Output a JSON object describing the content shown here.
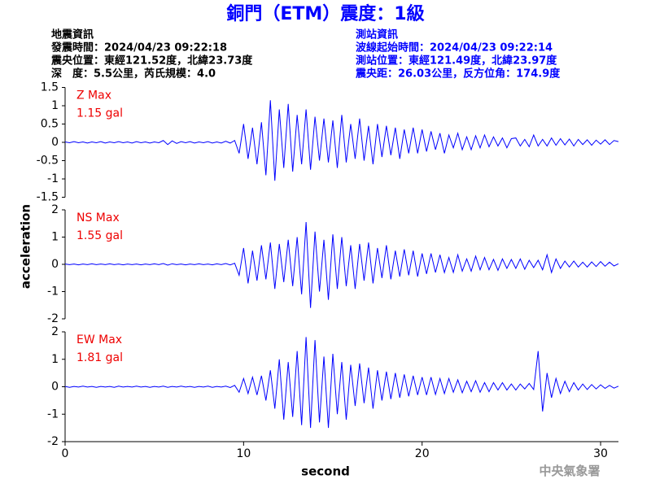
{
  "title": "銅門（ETM）震度：1級",
  "header": {
    "left": [
      "地震資訊",
      "發震時間：2024/04/23 09:22:18",
      "震央位置：東經121.52度，北緯23.73度",
      "深　度：5.5公里，芮氏規模：4.0"
    ],
    "right": [
      "測站資訊",
      "波線起始時間：2024/04/23 09:22:14",
      "測站位置：東經121.49度，北緯23.97度",
      "震央距：26.03公里，反方位角：174.9度"
    ]
  },
  "watermark": "中央氣象署",
  "chart_data": [
    {
      "type": "line",
      "annotations": [
        "Z Max",
        "1.15 gal"
      ],
      "color": "#0000ff",
      "xlim": [
        0,
        31
      ],
      "ylim": [
        -1.5,
        1.5
      ],
      "yticks": [
        1.5,
        1,
        0.5,
        0,
        -0.5,
        -1,
        -1.5
      ],
      "x": [
        0,
        0.25,
        0.5,
        0.75,
        1,
        1.25,
        1.5,
        1.75,
        2,
        2.25,
        2.5,
        2.75,
        3,
        3.25,
        3.5,
        3.75,
        4,
        4.25,
        4.5,
        4.75,
        5,
        5.25,
        5.5,
        5.75,
        6,
        6.25,
        6.5,
        6.75,
        7,
        7.25,
        7.5,
        7.75,
        8,
        8.25,
        8.5,
        8.75,
        9,
        9.25,
        9.5,
        9.75,
        10,
        10.25,
        10.5,
        10.75,
        11,
        11.25,
        11.5,
        11.75,
        12,
        12.25,
        12.5,
        12.75,
        13,
        13.25,
        13.5,
        13.75,
        14,
        14.25,
        14.5,
        14.75,
        15,
        15.25,
        15.5,
        15.75,
        16,
        16.25,
        16.5,
        16.75,
        17,
        17.25,
        17.5,
        17.75,
        18,
        18.25,
        18.5,
        18.75,
        19,
        19.25,
        19.5,
        19.75,
        20,
        20.25,
        20.5,
        20.75,
        21,
        21.25,
        21.5,
        21.75,
        22,
        22.25,
        22.5,
        22.75,
        23,
        23.25,
        23.5,
        23.75,
        24,
        24.25,
        24.5,
        24.75,
        25,
        25.25,
        25.5,
        25.75,
        26,
        26.25,
        26.5,
        26.75,
        27,
        27.25,
        27.5,
        27.75,
        28,
        28.25,
        28.5,
        28.75,
        29,
        29.25,
        29.5,
        29.75,
        30,
        30.25,
        30.5,
        30.75,
        31
      ],
      "values": [
        0.01,
        -0.01,
        0.02,
        -0.01,
        0.01,
        -0.02,
        0.01,
        -0.01,
        0.02,
        -0.02,
        0.01,
        -0.01,
        0.02,
        -0.01,
        0.01,
        -0.02,
        0.02,
        -0.01,
        0.01,
        -0.02,
        0.01,
        -0.01,
        0.05,
        -0.06,
        0.04,
        -0.03,
        0.02,
        -0.01,
        0.02,
        -0.02,
        0.01,
        -0.01,
        0.02,
        -0.02,
        0.01,
        -0.02,
        0.03,
        -0.02,
        0.05,
        -0.3,
        0.5,
        -0.45,
        0.4,
        -0.6,
        0.55,
        -0.9,
        1.15,
        -1.05,
        0.9,
        -0.7,
        1.05,
        -0.8,
        0.75,
        -0.6,
        0.9,
        -0.75,
        0.7,
        -0.5,
        0.65,
        -0.55,
        0.6,
        -0.7,
        0.75,
        -0.55,
        0.5,
        -0.45,
        0.65,
        -0.5,
        0.45,
        -0.6,
        0.5,
        -0.4,
        0.45,
        -0.35,
        0.4,
        -0.45,
        0.35,
        -0.3,
        0.4,
        -0.3,
        0.35,
        -0.25,
        0.3,
        -0.2,
        0.25,
        -0.3,
        0.2,
        -0.15,
        0.25,
        -0.2,
        0.15,
        -0.2,
        0.18,
        -0.15,
        0.2,
        -0.12,
        0.15,
        -0.1,
        0.12,
        -0.15,
        0.1,
        0.12,
        -0.1,
        0.08,
        -0.12,
        0.2,
        -0.1,
        0.08,
        -0.1,
        0.12,
        -0.08,
        0.1,
        -0.07,
        0.09,
        -0.1,
        0.08,
        -0.06,
        0.07,
        -0.08,
        0.06,
        -0.05,
        0.07,
        -0.06,
        0.05,
        0.02
      ]
    },
    {
      "type": "line",
      "annotations": [
        "NS Max",
        "1.55 gal"
      ],
      "color": "#0000ff",
      "ylabel": "acceleration",
      "xlim": [
        0,
        31
      ],
      "ylim": [
        -2,
        2
      ],
      "yticks": [
        2,
        1,
        0,
        -1,
        -2
      ],
      "x": [
        0,
        0.25,
        0.5,
        0.75,
        1,
        1.25,
        1.5,
        1.75,
        2,
        2.25,
        2.5,
        2.75,
        3,
        3.25,
        3.5,
        3.75,
        4,
        4.25,
        4.5,
        4.75,
        5,
        5.25,
        5.5,
        5.75,
        6,
        6.25,
        6.5,
        6.75,
        7,
        7.25,
        7.5,
        7.75,
        8,
        8.25,
        8.5,
        8.75,
        9,
        9.25,
        9.5,
        9.75,
        10,
        10.25,
        10.5,
        10.75,
        11,
        11.25,
        11.5,
        11.75,
        12,
        12.25,
        12.5,
        12.75,
        13,
        13.25,
        13.5,
        13.75,
        14,
        14.25,
        14.5,
        14.75,
        15,
        15.25,
        15.5,
        15.75,
        16,
        16.25,
        16.5,
        16.75,
        17,
        17.25,
        17.5,
        17.75,
        18,
        18.25,
        18.5,
        18.75,
        19,
        19.25,
        19.5,
        19.75,
        20,
        20.25,
        20.5,
        20.75,
        21,
        21.25,
        21.5,
        21.75,
        22,
        22.25,
        22.5,
        22.75,
        23,
        23.25,
        23.5,
        23.75,
        24,
        24.25,
        24.5,
        24.75,
        25,
        25.25,
        25.5,
        25.75,
        26,
        26.25,
        26.5,
        26.75,
        27,
        27.25,
        27.5,
        27.75,
        28,
        28.25,
        28.5,
        28.75,
        29,
        29.25,
        29.5,
        29.75,
        30,
        30.25,
        30.5,
        30.75,
        31
      ],
      "values": [
        0.01,
        -0.01,
        0.01,
        -0.02,
        0.01,
        -0.01,
        0.02,
        -0.01,
        0.01,
        -0.01,
        0.02,
        -0.01,
        0.01,
        -0.02,
        0.01,
        -0.01,
        0.01,
        -0.02,
        0.01,
        -0.01,
        0.02,
        -0.01,
        0.03,
        -0.03,
        0.02,
        -0.01,
        0.01,
        -0.02,
        0.01,
        -0.01,
        0.02,
        -0.01,
        0.01,
        -0.02,
        0.02,
        -0.01,
        0.03,
        -0.02,
        0.04,
        -0.4,
        0.6,
        -0.7,
        0.5,
        -0.6,
        0.7,
        -0.55,
        0.8,
        -0.9,
        0.75,
        -0.65,
        0.9,
        -0.8,
        1.0,
        -1.1,
        1.55,
        -1.6,
        1.2,
        -1.0,
        0.9,
        -1.3,
        1.1,
        -0.9,
        1.0,
        -0.8,
        0.7,
        -0.9,
        0.75,
        -0.6,
        0.8,
        -0.7,
        0.6,
        -0.5,
        0.7,
        -0.55,
        0.5,
        -0.45,
        0.55,
        -0.4,
        0.5,
        -0.45,
        0.4,
        -0.35,
        0.4,
        -0.3,
        0.35,
        -0.3,
        0.25,
        -0.3,
        0.35,
        -0.25,
        0.2,
        -0.25,
        0.3,
        -0.2,
        0.25,
        -0.2,
        0.18,
        -0.22,
        0.2,
        -0.15,
        0.18,
        -0.15,
        0.2,
        -0.18,
        0.15,
        -0.12,
        0.15,
        -0.2,
        0.35,
        -0.3,
        0.2,
        -0.15,
        0.12,
        -0.1,
        0.12,
        -0.1,
        0.08,
        -0.1,
        0.09,
        -0.08,
        0.1,
        -0.07,
        0.08,
        -0.06,
        0.02
      ]
    },
    {
      "type": "line",
      "annotations": [
        "EW Max",
        "1.81 gal"
      ],
      "color": "#0000ff",
      "xlabel": "second",
      "xlim": [
        0,
        31
      ],
      "ylim": [
        -2,
        2
      ],
      "yticks": [
        2,
        1,
        0,
        -1,
        -2
      ],
      "xticks": [
        0,
        10,
        20,
        30
      ],
      "x": [
        0,
        0.25,
        0.5,
        0.75,
        1,
        1.25,
        1.5,
        1.75,
        2,
        2.25,
        2.5,
        2.75,
        3,
        3.25,
        3.5,
        3.75,
        4,
        4.25,
        4.5,
        4.75,
        5,
        5.25,
        5.5,
        5.75,
        6,
        6.25,
        6.5,
        6.75,
        7,
        7.25,
        7.5,
        7.75,
        8,
        8.25,
        8.5,
        8.75,
        9,
        9.25,
        9.5,
        9.75,
        10,
        10.25,
        10.5,
        10.75,
        11,
        11.25,
        11.5,
        11.75,
        12,
        12.25,
        12.5,
        12.75,
        13,
        13.25,
        13.5,
        13.75,
        14,
        14.25,
        14.5,
        14.75,
        15,
        15.25,
        15.5,
        15.75,
        16,
        16.25,
        16.5,
        16.75,
        17,
        17.25,
        17.5,
        17.75,
        18,
        18.25,
        18.5,
        18.75,
        19,
        19.25,
        19.5,
        19.75,
        20,
        20.25,
        20.5,
        20.75,
        21,
        21.25,
        21.5,
        21.75,
        22,
        22.25,
        22.5,
        22.75,
        23,
        23.25,
        23.5,
        23.75,
        24,
        24.25,
        24.5,
        24.75,
        25,
        25.25,
        25.5,
        25.75,
        26,
        26.25,
        26.5,
        26.75,
        27,
        27.25,
        27.5,
        27.75,
        28,
        28.25,
        28.5,
        28.75,
        29,
        29.25,
        29.5,
        29.75,
        30,
        30.25,
        30.5,
        30.75,
        31
      ],
      "values": [
        0.01,
        -0.02,
        0.01,
        -0.01,
        0.02,
        -0.01,
        0.01,
        -0.02,
        0.01,
        -0.01,
        0.01,
        -0.02,
        0.02,
        -0.01,
        0.01,
        -0.01,
        0.02,
        -0.01,
        0.01,
        -0.02,
        0.01,
        -0.01,
        0.02,
        -0.02,
        0.01,
        -0.01,
        0.02,
        -0.01,
        0.01,
        -0.02,
        0.01,
        -0.01,
        0.02,
        -0.02,
        0.01,
        -0.01,
        0.02,
        -0.03,
        0.05,
        -0.2,
        0.3,
        -0.25,
        0.35,
        -0.3,
        0.4,
        -0.5,
        0.6,
        -0.8,
        1.0,
        -1.2,
        0.9,
        -1.1,
        1.3,
        -1.4,
        1.81,
        -1.5,
        1.7,
        -1.3,
        1.1,
        -1.5,
        1.2,
        -1.0,
        0.9,
        -1.2,
        0.8,
        -0.7,
        0.85,
        -0.6,
        0.7,
        -0.8,
        0.6,
        -0.5,
        0.55,
        -0.45,
        0.5,
        -0.4,
        0.45,
        -0.35,
        0.4,
        -0.3,
        0.35,
        -0.3,
        0.35,
        -0.28,
        0.3,
        -0.25,
        0.3,
        -0.2,
        0.25,
        -0.22,
        0.2,
        -0.18,
        0.22,
        -0.2,
        0.15,
        -0.18,
        0.15,
        -0.12,
        0.15,
        -0.12,
        0.1,
        -0.12,
        0.1,
        -0.08,
        0.12,
        -0.1,
        1.3,
        -0.9,
        0.5,
        -0.4,
        0.3,
        -0.25,
        0.2,
        -0.18,
        0.15,
        -0.12,
        0.1,
        -0.1,
        0.08,
        -0.08,
        0.07,
        -0.06,
        0.05,
        -0.05,
        0.02
      ]
    }
  ]
}
